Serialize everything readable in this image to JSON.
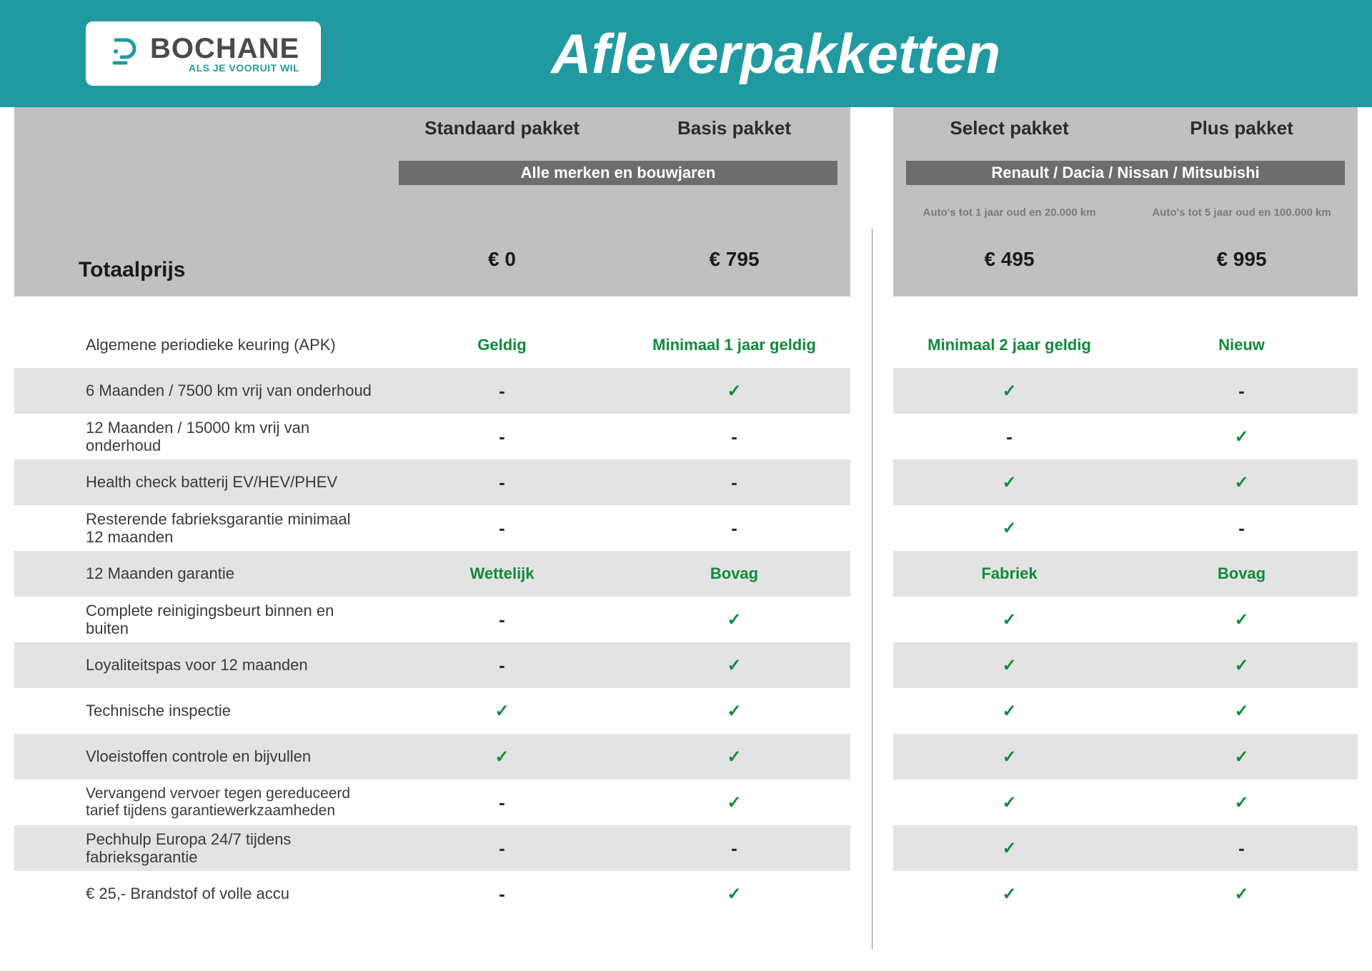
{
  "brand": {
    "name": "BOCHANE",
    "tagline": "ALS JE VOORUIT WIL",
    "icon_color": "#209aa0"
  },
  "page_title": "Afleverpakketten",
  "colors": {
    "header_bg": "#209aa0",
    "head_block_bg": "#c0c0c0",
    "group_bar_bg": "#6d6d6d",
    "stripe_bg": "#e3e3e3",
    "check_color": "#0f8a3a",
    "text_heading": "#1a1a1a",
    "text_body": "#3a3a3a"
  },
  "total_label": "Totaalprijs",
  "groups": [
    {
      "label": "Alle merken en bouwjaren"
    },
    {
      "label": "Renault / Dacia / Nissan / Mitsubishi"
    }
  ],
  "packages": [
    {
      "name": "Standaard pakket",
      "price": "€ 0",
      "sub": "",
      "group": 0
    },
    {
      "name": "Basis pakket",
      "price": "€ 795",
      "sub": "",
      "group": 0
    },
    {
      "name": "Select pakket",
      "price": "€ 495",
      "sub": "Auto's tot 1 jaar oud en 20.000 km",
      "group": 1
    },
    {
      "name": "Plus pakket",
      "price": "€ 995",
      "sub": "Auto's tot 5 jaar oud en 100.000 km",
      "group": 1
    }
  ],
  "features": [
    {
      "label": "Algemene periodieke keuring (APK)",
      "cells": [
        "Geldig",
        "Minimaal 1 jaar geldig",
        "Minimaal 2 jaar geldig",
        "Nieuw"
      ]
    },
    {
      "label": "6 Maanden / 7500 km vrij van onderhoud",
      "cells": [
        "-",
        "✓",
        "✓",
        "-"
      ]
    },
    {
      "label": "12 Maanden / 15000 km vrij van onderhoud",
      "cells": [
        "-",
        "-",
        "-",
        "✓"
      ]
    },
    {
      "label": "Health check batterij EV/HEV/PHEV",
      "cells": [
        "-",
        "-",
        "✓",
        "✓"
      ]
    },
    {
      "label": "Resterende fabrieksgarantie minimaal 12 maanden",
      "cells": [
        "-",
        "-",
        "✓",
        "-"
      ]
    },
    {
      "label": "12 Maanden  garantie",
      "cells": [
        "Wettelijk",
        "Bovag",
        "Fabriek",
        "Bovag"
      ]
    },
    {
      "label": "Complete reinigingsbeurt binnen en buiten",
      "cells": [
        "-",
        "✓",
        "✓",
        "✓"
      ]
    },
    {
      "label": "Loyaliteitspas voor 12 maanden",
      "cells": [
        "-",
        "✓",
        "✓",
        "✓"
      ]
    },
    {
      "label": "Technische inspectie",
      "cells": [
        "✓",
        "✓",
        "✓",
        "✓"
      ]
    },
    {
      "label": "Vloeistoffen controle en bijvullen",
      "cells": [
        "✓",
        "✓",
        "✓",
        "✓"
      ]
    },
    {
      "label": "Vervangend vervoer tegen gereduceerd tarief tijdens garantiewerkzaamheden",
      "cells": [
        "-",
        "✓",
        "✓",
        "✓"
      ]
    },
    {
      "label": "Pechhulp Europa 24/7 tijdens fabrieksgarantie",
      "cells": [
        "-",
        "-",
        "✓",
        "-"
      ]
    },
    {
      "label": "€ 25,- Brandstof of  volle accu",
      "cells": [
        "-",
        "✓",
        "✓",
        "✓"
      ]
    }
  ]
}
